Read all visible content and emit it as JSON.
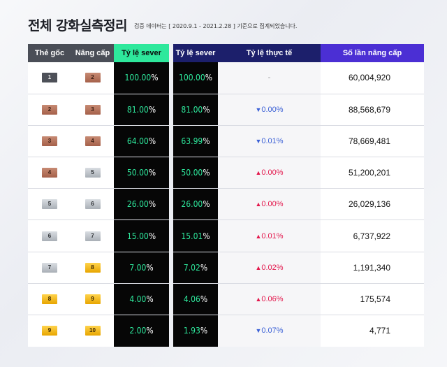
{
  "header": {
    "title": "전체 강화실측정리",
    "note": "검증 데이터는 [ 2020.9.1 - 2021.2.28 ] 기준으로 집계되었습니다."
  },
  "left": {
    "headers": [
      "Thẻ gốc",
      "Nâng cấp",
      "Tỷ lệ sever"
    ]
  },
  "right": {
    "headers": [
      "Tỷ lệ sever",
      "Tỷ lệ thực tế",
      "Số lần nâng cấp"
    ]
  },
  "colors": {
    "accent_green": "#2ee89c",
    "header_navy": "#1c1f6b",
    "header_purple": "#4b2fd4",
    "up_red": "#e3174c",
    "down_blue": "#3c61d6"
  },
  "rows": [
    {
      "from": "1",
      "from_tier": "dark",
      "to": "2",
      "to_tier": "bronze",
      "server_rate": "100.00",
      "actual_rate": "100.00",
      "change": "-",
      "direction": "none",
      "attempts": "60,004,920"
    },
    {
      "from": "2",
      "from_tier": "bronze",
      "to": "3",
      "to_tier": "bronze",
      "server_rate": "81.00",
      "actual_rate": "81.00",
      "change": "0.00%",
      "direction": "down",
      "attempts": "88,568,679"
    },
    {
      "from": "3",
      "from_tier": "bronze",
      "to": "4",
      "to_tier": "bronze",
      "server_rate": "64.00",
      "actual_rate": "63.99",
      "change": "0.01%",
      "direction": "down",
      "attempts": "78,669,481"
    },
    {
      "from": "4",
      "from_tier": "bronze",
      "to": "5",
      "to_tier": "silver",
      "server_rate": "50.00",
      "actual_rate": "50.00",
      "change": "0.00%",
      "direction": "up",
      "attempts": "51,200,201"
    },
    {
      "from": "5",
      "from_tier": "silver",
      "to": "6",
      "to_tier": "silver",
      "server_rate": "26.00",
      "actual_rate": "26.00",
      "change": "0.00%",
      "direction": "up",
      "attempts": "26,029,136"
    },
    {
      "from": "6",
      "from_tier": "silver",
      "to": "7",
      "to_tier": "silver",
      "server_rate": "15.00",
      "actual_rate": "15.01",
      "change": "0.01%",
      "direction": "up",
      "attempts": "6,737,922"
    },
    {
      "from": "7",
      "from_tier": "silver",
      "to": "8",
      "to_tier": "gold",
      "server_rate": "7.00",
      "actual_rate": "7.02",
      "change": "0.02%",
      "direction": "up",
      "attempts": "1,191,340"
    },
    {
      "from": "8",
      "from_tier": "gold",
      "to": "9",
      "to_tier": "gold",
      "server_rate": "4.00",
      "actual_rate": "4.06",
      "change": "0.06%",
      "direction": "up",
      "attempts": "175,574"
    },
    {
      "from": "9",
      "from_tier": "gold",
      "to": "10",
      "to_tier": "gold",
      "server_rate": "2.00",
      "actual_rate": "1.93",
      "change": "0.07%",
      "direction": "down",
      "attempts": "4,771"
    }
  ]
}
